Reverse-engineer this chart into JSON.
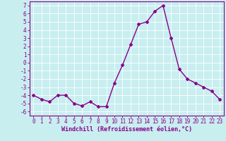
{
  "x": [
    0,
    1,
    2,
    3,
    4,
    5,
    6,
    7,
    8,
    9,
    10,
    11,
    12,
    13,
    14,
    15,
    16,
    17,
    18,
    19,
    20,
    21,
    22,
    23
  ],
  "y": [
    -4,
    -4.5,
    -4.8,
    -4,
    -4,
    -5,
    -5.3,
    -4.8,
    -5.4,
    -5.4,
    -2.5,
    -0.3,
    2.2,
    4.7,
    5.0,
    6.3,
    7.0,
    3.0,
    -0.8,
    -2.0,
    -2.5,
    -3.0,
    -3.5,
    -4.5
  ],
  "line_color": "#880088",
  "marker": "D",
  "markersize": 2.0,
  "linewidth": 1.0,
  "bg_color": "#c8eef0",
  "grid_color": "#ffffff",
  "xlabel": "Windchill (Refroidissement éolien,°C)",
  "xlabel_fontsize": 6.0,
  "tick_fontsize": 5.5,
  "ylim": [
    -6.5,
    7.5
  ],
  "xlim": [
    -0.5,
    23.5
  ],
  "yticks": [
    -6,
    -5,
    -4,
    -3,
    -2,
    -1,
    0,
    1,
    2,
    3,
    4,
    5,
    6,
    7
  ],
  "xticks": [
    0,
    1,
    2,
    3,
    4,
    5,
    6,
    7,
    8,
    9,
    10,
    11,
    12,
    13,
    14,
    15,
    16,
    17,
    18,
    19,
    20,
    21,
    22,
    23
  ]
}
